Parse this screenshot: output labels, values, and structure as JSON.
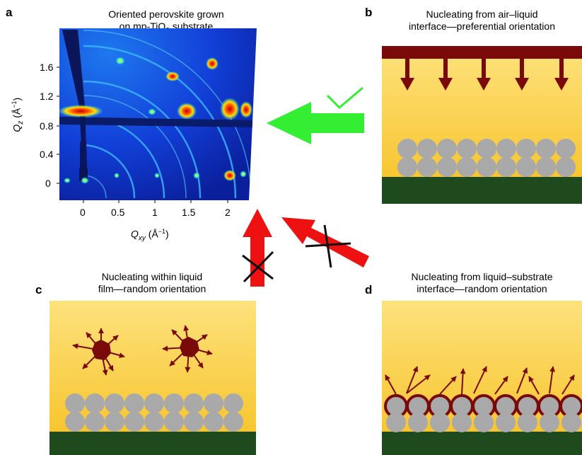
{
  "panels": {
    "a": {
      "label": "a",
      "title_line1": "Oriented perovskite grown",
      "title_line2_pre": "on mp-TiO",
      "title_line2_sub": "2",
      "title_line2_post": " substrate",
      "y_axis": {
        "q": "Q",
        "sub": "z",
        "unit": " (Å",
        "exp": "−1",
        "close": ")",
        "ticks": [
          "1.6",
          "1.2",
          "0.8",
          "0.4",
          "0"
        ]
      },
      "x_axis": {
        "q": "Q",
        "sub": "xy",
        "unit": " (Å",
        "exp": "−1",
        "close": ")",
        "ticks": [
          "0",
          "0.5",
          "1",
          "1.5",
          "2"
        ]
      }
    },
    "b": {
      "label": "b",
      "caption_line1": "Nucleating from air–liquid",
      "caption_line2": "interface—preferential orientation"
    },
    "c": {
      "label": "c",
      "caption_line1": "Nucleating within liquid",
      "caption_line2": "film—random orientation"
    },
    "d": {
      "label": "d",
      "caption_line1": "Nucleating from liquid–substrate",
      "caption_line2": "interface—random orientation"
    }
  },
  "colors": {
    "substrate": "#1f4a1e",
    "nucleus": "#7a0a0a",
    "particle": "#a9a9a9",
    "film_top": "#fbe07a",
    "film_bottom": "#f5bf1f",
    "arrow_ok": "#33ee33",
    "arrow_bad": "#ee1111",
    "gixd_bg": "#1030d0"
  }
}
